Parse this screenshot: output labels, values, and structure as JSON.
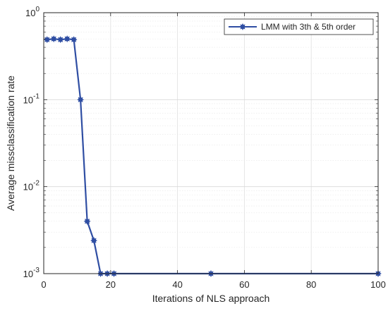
{
  "chart_data": {
    "type": "line",
    "title": "",
    "xlabel": "Iterations of NLS approach",
    "ylabel": "Average missclassification rate",
    "xlim": [
      0,
      100
    ],
    "ylim": [
      0.001,
      1
    ],
    "yscale": "log",
    "grid": true,
    "legend_position": "top-right",
    "x_ticks": [
      {
        "value": 0,
        "label": "0"
      },
      {
        "value": 20,
        "label": "20"
      },
      {
        "value": 40,
        "label": "40"
      },
      {
        "value": 60,
        "label": "60"
      },
      {
        "value": 80,
        "label": "80"
      },
      {
        "value": 100,
        "label": "100"
      }
    ],
    "y_ticks": [
      {
        "value": 0.001,
        "base": "10",
        "exp": "-3"
      },
      {
        "value": 0.01,
        "base": "10",
        "exp": "-2"
      },
      {
        "value": 0.1,
        "base": "10",
        "exp": "-1"
      },
      {
        "value": 1,
        "base": "10",
        "exp": "0"
      }
    ],
    "series": [
      {
        "name": "LMM with 3th & 5th order",
        "color": "#2f4ea3",
        "marker": "filled-star",
        "x": [
          1,
          3,
          5,
          7,
          9,
          11,
          13,
          15,
          17,
          19,
          21,
          50,
          100
        ],
        "y": [
          0.49,
          0.5,
          0.49,
          0.5,
          0.49,
          0.1,
          0.004,
          0.0024,
          0.001,
          0.001,
          0.001,
          0.001,
          0.001
        ]
      }
    ]
  }
}
